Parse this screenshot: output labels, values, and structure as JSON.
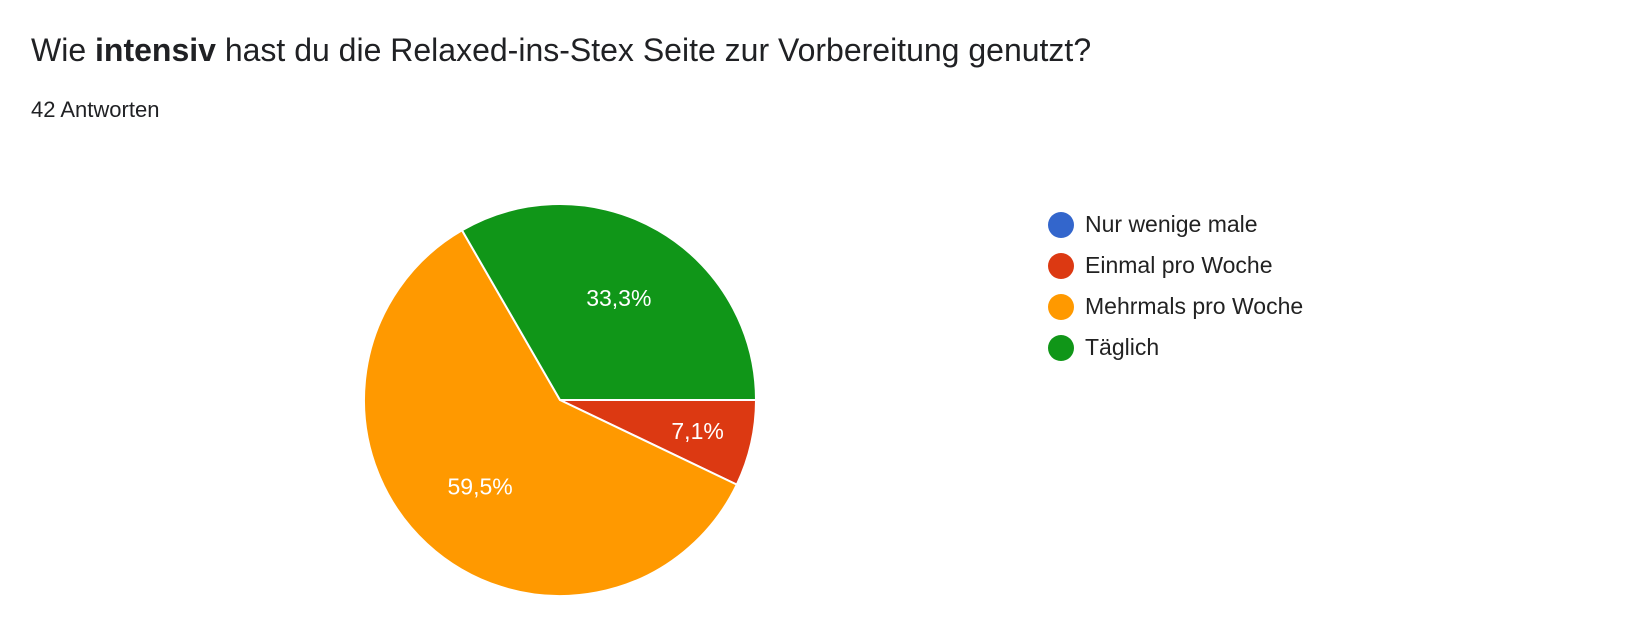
{
  "question": {
    "prefix": "Wie ",
    "emphasis": "intensiv",
    "suffix": " hast du die Relaxed-ins-Stex Seite zur Vorbereitung genutzt?"
  },
  "responses_label": "42 Antworten",
  "chart_data": {
    "type": "pie",
    "title": "Wie intensiv hast du die Relaxed-ins-Stex Seite zur Vorbereitung genutzt?",
    "subtitle": "42 Antworten",
    "legend_position": "right",
    "slices": [
      {
        "label": "Nur wenige male",
        "percent": 0,
        "display": "",
        "color": "#3366cc"
      },
      {
        "label": "Einmal pro Woche",
        "percent": 7.1,
        "display": "7,1%",
        "color": "#dc3912"
      },
      {
        "label": "Mehrmals pro Woche",
        "percent": 59.5,
        "display": "59,5%",
        "color": "#ff9900"
      },
      {
        "label": "Täglich",
        "percent": 33.3,
        "display": "33,3%",
        "color": "#109618"
      }
    ]
  }
}
